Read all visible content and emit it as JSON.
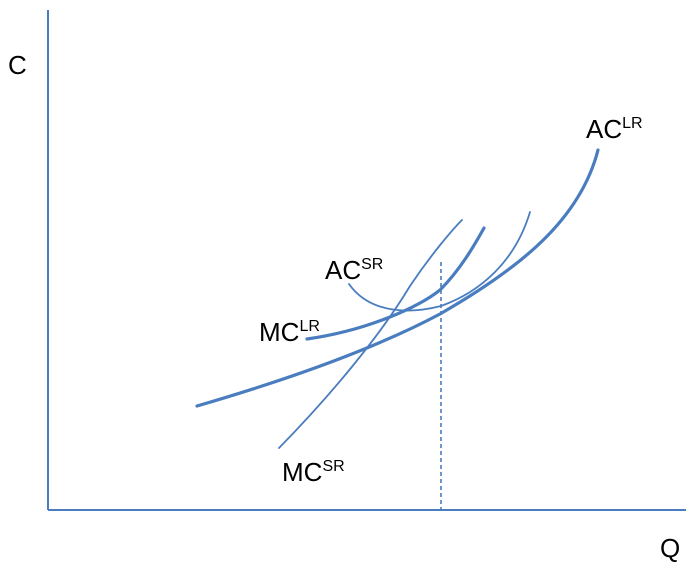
{
  "axes": {
    "y_label": "C",
    "x_label": "Q"
  },
  "curves": {
    "ac_lr": {
      "base": "AC",
      "sup": "LR"
    },
    "mc_lr": {
      "base": "MC",
      "sup": "LR"
    },
    "ac_sr": {
      "base": "AC",
      "sup": "SR"
    },
    "mc_sr": {
      "base": "MC",
      "sup": "SR"
    }
  },
  "colors": {
    "curve": "#4a7dbf",
    "axis": "#4a7dbf",
    "text": "#000000"
  }
}
